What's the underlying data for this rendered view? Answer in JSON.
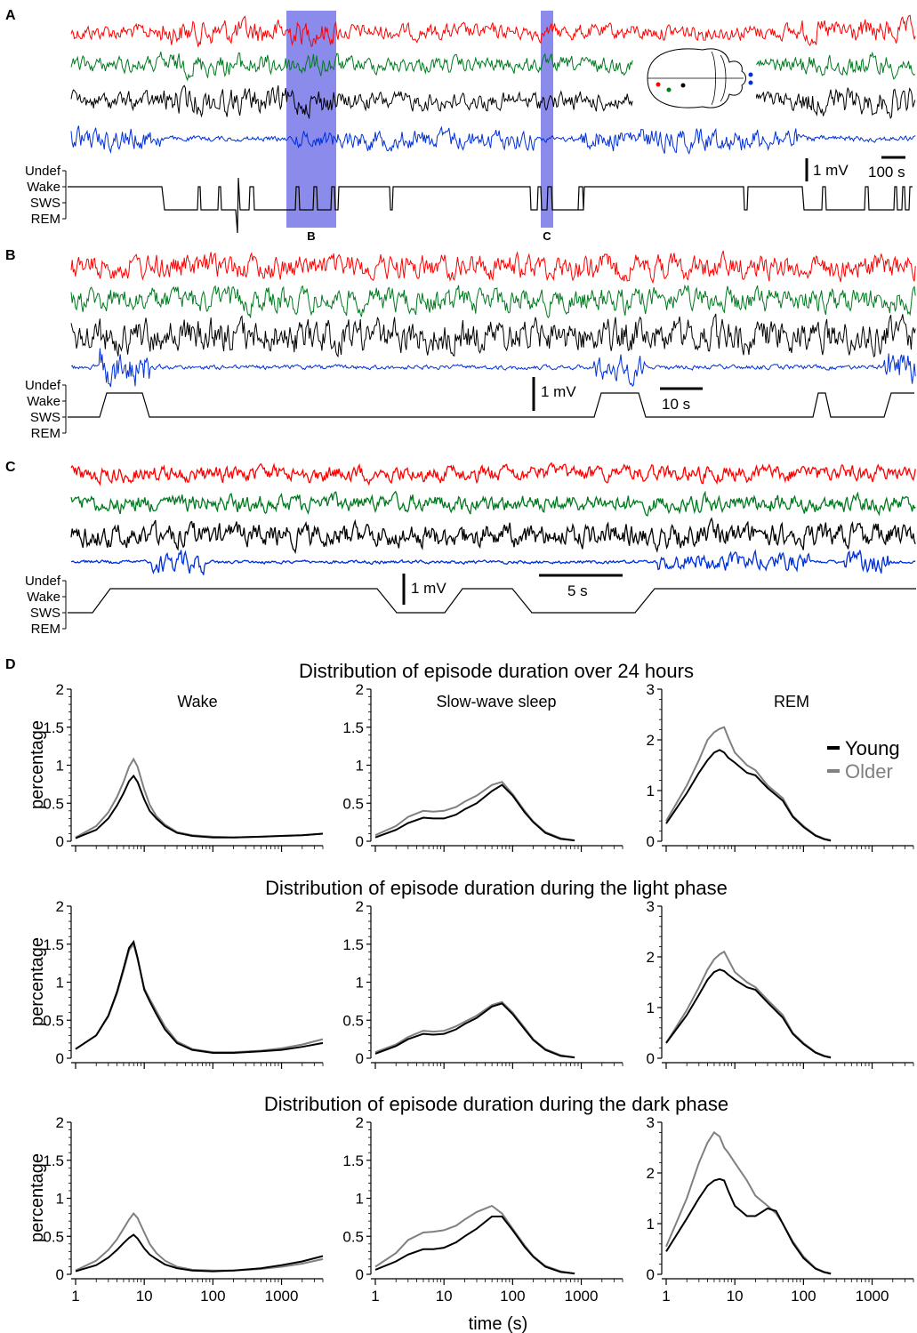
{
  "panels": {
    "A": {
      "label": "A",
      "state_labels": [
        "Undef",
        "Wake",
        "SWS",
        "REM"
      ],
      "scale_amplitude": "1 mV",
      "scale_time": "100 s",
      "window_labels": [
        "B",
        "C"
      ],
      "highlight_color": "#6464e6",
      "inset_icon": "brain-outline-icon"
    },
    "B": {
      "label": "B",
      "state_labels": [
        "Undef",
        "Wake",
        "SWS",
        "REM"
      ],
      "scale_amplitude": "1 mV",
      "scale_time": "10 s"
    },
    "C": {
      "label": "C",
      "state_labels": [
        "Undef",
        "Wake",
        "SWS",
        "REM"
      ],
      "scale_amplitude": "1 mV",
      "scale_time": "5 s"
    },
    "D": {
      "label": "D"
    }
  },
  "trace_colors": {
    "channel1": "#ff0000",
    "channel2": "#007a1e",
    "channel3": "#000000",
    "channel4": "#0030d8"
  },
  "series_colors": {
    "Young": "#000000",
    "Older": "#808080"
  },
  "chart_data": {
    "type": "line",
    "x_scale": "log",
    "xlim": [
      1,
      4000
    ],
    "x_ticks": [
      1,
      10,
      100,
      1000
    ],
    "x_tick_labels": [
      "1",
      "10",
      "100",
      "1000"
    ],
    "xlabel": "time (s)",
    "ylabel": "percentage",
    "legend": {
      "entries": [
        "Young",
        "Older"
      ],
      "placement": "right of REM (row 1)"
    },
    "column_titles": [
      "Wake",
      "Slow-wave sleep",
      "REM"
    ],
    "row_titles": [
      "Distribution of episode duration over 24 hours",
      "Distribution of episode duration during the light phase",
      "Distribution of episode duration during the dark phase"
    ],
    "subplots": [
      {
        "row": 0,
        "col": 0,
        "ylim": [
          0,
          2
        ],
        "y_ticks": [
          0,
          0.5,
          1,
          1.5,
          2
        ],
        "y_tick_labels": [
          "0",
          "0.5",
          "1",
          "1.5",
          "2"
        ],
        "series": [
          {
            "name": "Older",
            "x": [
              1,
              2,
              3,
              4,
              5,
              6,
              7,
              8,
              10,
              12,
              15,
              20,
              30,
              50,
              100,
              200,
              500,
              1000,
              2000,
              4000
            ],
            "y": [
              0.05,
              0.2,
              0.38,
              0.58,
              0.78,
              0.98,
              1.08,
              0.98,
              0.68,
              0.48,
              0.33,
              0.22,
              0.12,
              0.08,
              0.06,
              0.05,
              0.06,
              0.07,
              0.08,
              0.1
            ]
          },
          {
            "name": "Young",
            "x": [
              1,
              2,
              3,
              4,
              5,
              6,
              7,
              8,
              10,
              12,
              15,
              20,
              30,
              50,
              100,
              200,
              500,
              1000,
              2000,
              4000
            ],
            "y": [
              0.04,
              0.15,
              0.3,
              0.47,
              0.63,
              0.79,
              0.86,
              0.78,
              0.55,
              0.4,
              0.3,
              0.2,
              0.11,
              0.07,
              0.05,
              0.05,
              0.06,
              0.07,
              0.08,
              0.1
            ]
          }
        ]
      },
      {
        "row": 0,
        "col": 1,
        "ylim": [
          0,
          2
        ],
        "y_ticks": [
          0,
          0.5,
          1,
          1.5,
          2
        ],
        "y_tick_labels": [
          "0",
          "0.5",
          "1",
          "1.5",
          "2"
        ],
        "series": [
          {
            "name": "Older",
            "x": [
              1,
              2,
              3,
              5,
              7,
              10,
              15,
              20,
              30,
              50,
              70,
              100,
              150,
              200,
              300,
              500,
              800
            ],
            "y": [
              0.08,
              0.2,
              0.32,
              0.4,
              0.39,
              0.4,
              0.45,
              0.52,
              0.6,
              0.74,
              0.78,
              0.62,
              0.4,
              0.26,
              0.12,
              0.04,
              0.01
            ]
          },
          {
            "name": "Young",
            "x": [
              1,
              2,
              3,
              5,
              7,
              10,
              15,
              20,
              30,
              50,
              70,
              100,
              150,
              200,
              300,
              500,
              800
            ],
            "y": [
              0.05,
              0.15,
              0.24,
              0.31,
              0.3,
              0.3,
              0.35,
              0.42,
              0.5,
              0.66,
              0.74,
              0.6,
              0.38,
              0.25,
              0.11,
              0.03,
              0.01
            ]
          }
        ]
      },
      {
        "row": 0,
        "col": 2,
        "ylim": [
          0,
          3
        ],
        "y_ticks": [
          0,
          1,
          2,
          3
        ],
        "y_tick_labels": [
          "0",
          "1",
          "2",
          "3"
        ],
        "series": [
          {
            "name": "Older",
            "x": [
              1,
              2,
              3,
              4,
              5,
              6,
              7,
              8,
              10,
              15,
              20,
              30,
              50,
              70,
              100,
              150,
              200,
              250
            ],
            "y": [
              0.4,
              1.1,
              1.6,
              2.0,
              2.15,
              2.22,
              2.25,
              2.05,
              1.75,
              1.5,
              1.4,
              1.1,
              0.85,
              0.5,
              0.3,
              0.12,
              0.05,
              0.02
            ]
          },
          {
            "name": "Young",
            "x": [
              1,
              2,
              3,
              4,
              5,
              6,
              7,
              8,
              10,
              15,
              20,
              30,
              50,
              70,
              100,
              150,
              200,
              250
            ],
            "y": [
              0.35,
              0.95,
              1.35,
              1.6,
              1.75,
              1.8,
              1.75,
              1.65,
              1.55,
              1.35,
              1.3,
              1.05,
              0.8,
              0.48,
              0.28,
              0.11,
              0.04,
              0.01
            ]
          }
        ]
      },
      {
        "row": 1,
        "col": 0,
        "ylim": [
          0,
          2
        ],
        "y_ticks": [
          0,
          0.5,
          1,
          1.5,
          2
        ],
        "y_tick_labels": [
          "0",
          "0.5",
          "1",
          "1.5",
          "2"
        ],
        "series": [
          {
            "name": "Older",
            "x": [
              1,
              2,
              3,
              4,
              5,
              6,
              7,
              8,
              10,
              12,
              15,
              20,
              30,
              50,
              100,
              200,
              500,
              1000,
              2000,
              4000
            ],
            "y": [
              0.12,
              0.3,
              0.55,
              0.85,
              1.15,
              1.42,
              1.5,
              1.3,
              0.92,
              0.78,
              0.62,
              0.42,
              0.22,
              0.12,
              0.08,
              0.08,
              0.1,
              0.13,
              0.18,
              0.25
            ]
          },
          {
            "name": "Young",
            "x": [
              1,
              2,
              3,
              4,
              5,
              6,
              7,
              8,
              10,
              12,
              15,
              20,
              30,
              50,
              100,
              200,
              500,
              1000,
              2000,
              4000
            ],
            "y": [
              0.12,
              0.3,
              0.56,
              0.87,
              1.18,
              1.45,
              1.53,
              1.32,
              0.9,
              0.75,
              0.58,
              0.38,
              0.2,
              0.11,
              0.07,
              0.07,
              0.09,
              0.11,
              0.15,
              0.2
            ]
          }
        ]
      },
      {
        "row": 1,
        "col": 1,
        "ylim": [
          0,
          2
        ],
        "y_ticks": [
          0,
          0.5,
          1,
          1.5,
          2
        ],
        "y_tick_labels": [
          "0",
          "0.5",
          "1",
          "1.5",
          "2"
        ],
        "series": [
          {
            "name": "Older",
            "x": [
              1,
              2,
              3,
              5,
              7,
              10,
              15,
              20,
              30,
              50,
              70,
              100,
              150,
              200,
              300,
              500,
              800
            ],
            "y": [
              0.08,
              0.18,
              0.28,
              0.36,
              0.35,
              0.36,
              0.42,
              0.48,
              0.56,
              0.7,
              0.74,
              0.6,
              0.4,
              0.25,
              0.12,
              0.04,
              0.01
            ]
          },
          {
            "name": "Young",
            "x": [
              1,
              2,
              3,
              5,
              7,
              10,
              15,
              20,
              30,
              50,
              70,
              100,
              150,
              200,
              300,
              500,
              800
            ],
            "y": [
              0.06,
              0.16,
              0.25,
              0.32,
              0.31,
              0.32,
              0.38,
              0.45,
              0.53,
              0.68,
              0.72,
              0.58,
              0.38,
              0.24,
              0.11,
              0.03,
              0.01
            ]
          }
        ]
      },
      {
        "row": 1,
        "col": 2,
        "ylim": [
          0,
          3
        ],
        "y_ticks": [
          0,
          1,
          2,
          3
        ],
        "y_tick_labels": [
          "0",
          "1",
          "2",
          "3"
        ],
        "series": [
          {
            "name": "Older",
            "x": [
              1,
              2,
              3,
              4,
              5,
              6,
              7,
              8,
              10,
              15,
              20,
              30,
              50,
              70,
              100,
              150,
              200,
              250
            ],
            "y": [
              0.3,
              0.95,
              1.4,
              1.75,
              1.95,
              2.05,
              2.1,
              1.95,
              1.7,
              1.5,
              1.4,
              1.15,
              0.85,
              0.5,
              0.3,
              0.12,
              0.05,
              0.02
            ]
          },
          {
            "name": "Young",
            "x": [
              1,
              2,
              3,
              4,
              5,
              6,
              7,
              8,
              10,
              15,
              20,
              30,
              50,
              70,
              100,
              150,
              200,
              250
            ],
            "y": [
              0.3,
              0.85,
              1.25,
              1.55,
              1.7,
              1.75,
              1.72,
              1.65,
              1.55,
              1.4,
              1.35,
              1.1,
              0.8,
              0.48,
              0.28,
              0.11,
              0.04,
              0.01
            ]
          }
        ]
      },
      {
        "row": 2,
        "col": 0,
        "ylim": [
          0,
          2
        ],
        "y_ticks": [
          0,
          0.5,
          1,
          1.5,
          2
        ],
        "y_tick_labels": [
          "0",
          "0.5",
          "1",
          "1.5",
          "2"
        ],
        "series": [
          {
            "name": "Older",
            "x": [
              1,
              2,
              3,
              4,
              5,
              6,
              7,
              8,
              10,
              12,
              15,
              20,
              30,
              50,
              100,
              200,
              500,
              1000,
              2000,
              4000
            ],
            "y": [
              0.05,
              0.18,
              0.32,
              0.46,
              0.6,
              0.72,
              0.8,
              0.74,
              0.55,
              0.4,
              0.28,
              0.18,
              0.1,
              0.06,
              0.05,
              0.05,
              0.07,
              0.1,
              0.14,
              0.2
            ]
          },
          {
            "name": "Young",
            "x": [
              1,
              2,
              3,
              4,
              5,
              6,
              7,
              8,
              10,
              12,
              15,
              20,
              30,
              50,
              100,
              200,
              500,
              1000,
              2000,
              4000
            ],
            "y": [
              0.04,
              0.12,
              0.22,
              0.32,
              0.41,
              0.48,
              0.52,
              0.47,
              0.34,
              0.26,
              0.2,
              0.13,
              0.08,
              0.05,
              0.04,
              0.05,
              0.08,
              0.12,
              0.17,
              0.24
            ]
          }
        ]
      },
      {
        "row": 2,
        "col": 1,
        "ylim": [
          0,
          2
        ],
        "y_ticks": [
          0,
          0.5,
          1,
          1.5,
          2
        ],
        "y_tick_labels": [
          "0",
          "0.5",
          "1",
          "1.5",
          "2"
        ],
        "series": [
          {
            "name": "Older",
            "x": [
              1,
              2,
              3,
              5,
              7,
              10,
              15,
              20,
              30,
              50,
              70,
              100,
              150,
              200,
              300,
              500,
              800
            ],
            "y": [
              0.1,
              0.28,
              0.45,
              0.55,
              0.56,
              0.58,
              0.64,
              0.72,
              0.82,
              0.9,
              0.8,
              0.6,
              0.38,
              0.24,
              0.11,
              0.04,
              0.01
            ]
          },
          {
            "name": "Young",
            "x": [
              1,
              2,
              3,
              5,
              7,
              10,
              15,
              20,
              30,
              50,
              70,
              100,
              150,
              200,
              300,
              500,
              800
            ],
            "y": [
              0.06,
              0.17,
              0.26,
              0.33,
              0.33,
              0.35,
              0.42,
              0.5,
              0.6,
              0.76,
              0.76,
              0.58,
              0.36,
              0.23,
              0.1,
              0.03,
              0.01
            ]
          }
        ]
      },
      {
        "row": 2,
        "col": 2,
        "ylim": [
          0,
          3
        ],
        "y_ticks": [
          0,
          1,
          2,
          3
        ],
        "y_tick_labels": [
          "0",
          "1",
          "2",
          "3"
        ],
        "series": [
          {
            "name": "Older",
            "x": [
              1,
              2,
              3,
              4,
              5,
              6,
              7,
              8,
              10,
              15,
              20,
              30,
              40,
              50,
              70,
              100,
              150,
              200,
              250
            ],
            "y": [
              0.55,
              1.5,
              2.2,
              2.6,
              2.8,
              2.72,
              2.5,
              2.4,
              2.2,
              1.85,
              1.55,
              1.35,
              1.2,
              1.0,
              0.65,
              0.35,
              0.12,
              0.05,
              0.02
            ]
          },
          {
            "name": "Young",
            "x": [
              1,
              2,
              3,
              4,
              5,
              6,
              7,
              8,
              10,
              15,
              20,
              30,
              40,
              50,
              70,
              100,
              150,
              200,
              250
            ],
            "y": [
              0.45,
              1.1,
              1.5,
              1.75,
              1.85,
              1.88,
              1.85,
              1.65,
              1.35,
              1.15,
              1.15,
              1.3,
              1.25,
              1.0,
              0.62,
              0.32,
              0.11,
              0.04,
              0.01
            ]
          }
        ]
      }
    ]
  }
}
